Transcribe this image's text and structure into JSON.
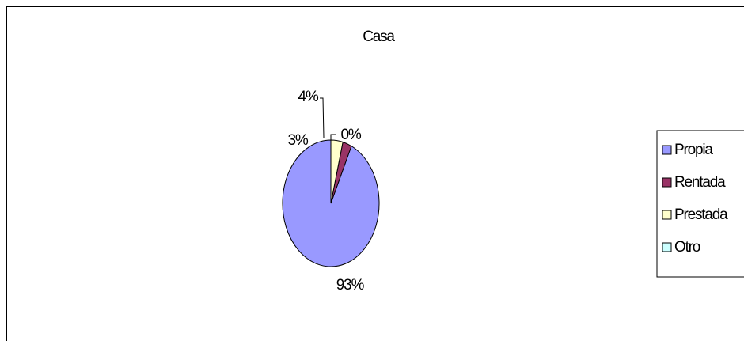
{
  "chart_data": {
    "type": "pie",
    "title": "Casa",
    "categories": [
      "Propia",
      "Rentada",
      "Prestada",
      "Otro"
    ],
    "values": [
      93,
      3,
      4,
      0
    ],
    "data_labels": [
      "93%",
      "3%",
      "4%",
      "0%"
    ],
    "colors": [
      "#9999ff",
      "#993366",
      "#ffffcc",
      "#ccffff"
    ],
    "legend_position": "right"
  }
}
